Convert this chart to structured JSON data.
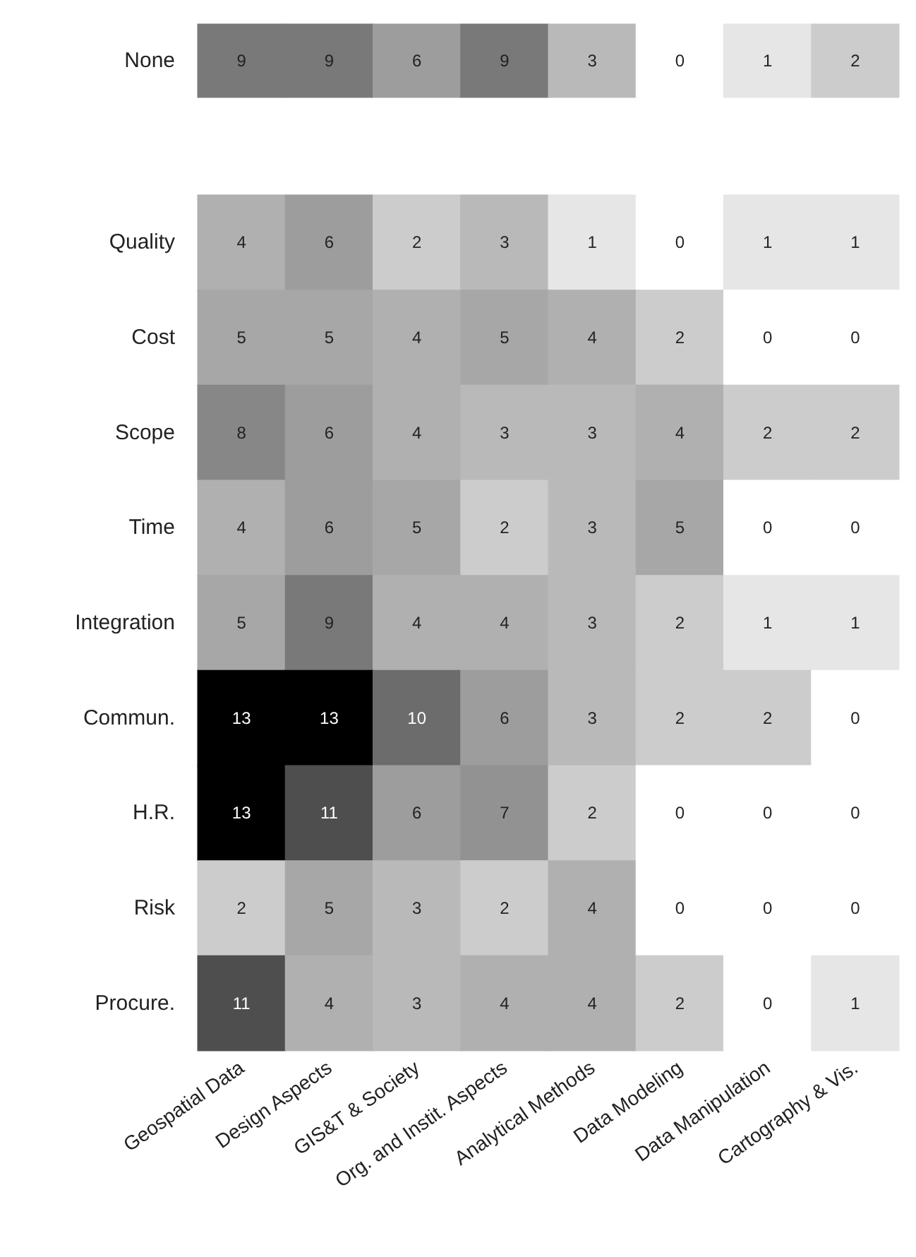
{
  "chart_data": [
    {
      "type": "heatmap",
      "categories": [
        null,
        null,
        null,
        null,
        null,
        null,
        null,
        null
      ],
      "y_categories": [
        "None"
      ],
      "cells": [
        [
          9,
          9,
          6,
          9,
          3,
          0,
          1,
          2
        ]
      ],
      "data_labels": true,
      "tick_labels": "y"
    },
    {
      "type": "heatmap",
      "categories": [
        "Geospatial Data",
        "Design Aspects",
        "GIS&T & Society",
        "Org. and Instit. Aspects",
        "Analytical Methods",
        "Data Modeling",
        "Data Manipulation",
        "Cartography & Vis."
      ],
      "y_categories": [
        "Quality",
        "Cost",
        "Scope",
        "Time",
        "Integration",
        "Commun.",
        "H.R.",
        "Risk",
        "Procure."
      ],
      "cells": [
        [
          4,
          6,
          2,
          3,
          1,
          0,
          1,
          1
        ],
        [
          5,
          5,
          4,
          5,
          4,
          2,
          0,
          0
        ],
        [
          8,
          6,
          4,
          3,
          3,
          4,
          2,
          2
        ],
        [
          4,
          6,
          5,
          2,
          3,
          5,
          0,
          0
        ],
        [
          5,
          9,
          4,
          4,
          3,
          2,
          1,
          1
        ],
        [
          13,
          13,
          10,
          6,
          3,
          2,
          2,
          0
        ],
        [
          13,
          11,
          6,
          7,
          2,
          0,
          0,
          0
        ],
        [
          2,
          5,
          3,
          2,
          4,
          0,
          0,
          0
        ],
        [
          11,
          4,
          3,
          4,
          4,
          2,
          0,
          1
        ]
      ],
      "data_labels": true
    }
  ]
}
